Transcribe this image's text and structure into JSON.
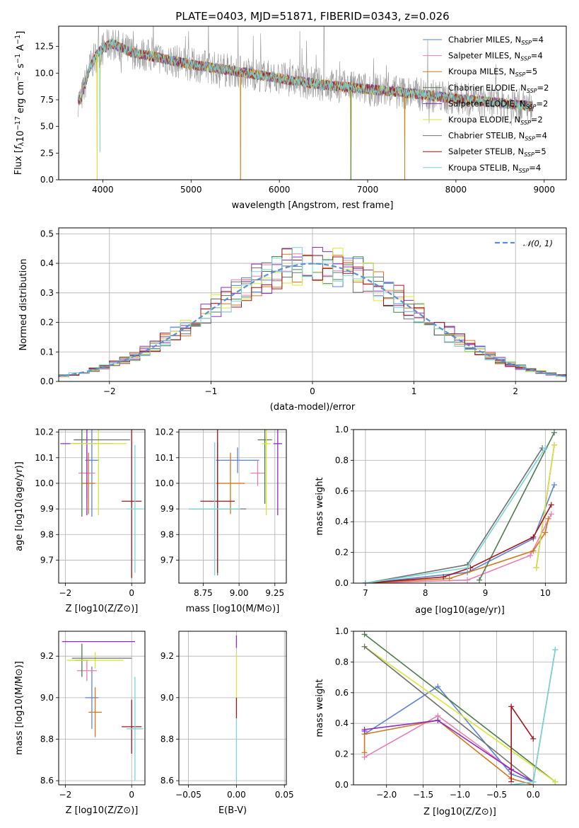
{
  "colors": {
    "Chabrier MILES": "#5b84d6",
    "Salpeter MILES": "#e57fb6",
    "Kroupa MILES": "#d2771c",
    "Chabrier ELODIE": "#4e7a4e",
    "Salpeter ELODIE": "#8e2bc2",
    "Kroupa ELODIE": "#d8e63a",
    "Chabrier STELIB": "#707070",
    "Salpeter STELIB": "#a4141c",
    "Kroupa STELIB": "#79d6d6",
    "gaussian": "#5b8fd6",
    "data": "#909090"
  },
  "chart_data": [
    {
      "id": "spectrum",
      "type": "line",
      "title": "PLATE=0403, MJD=51871, FIBERID=0343, z=0.026",
      "xlabel": "wavelength [Angstrom, rest frame]",
      "ylabel": "Flux [f_λ10^-17 erg cm^-2 s^-1 A^-1]",
      "xlim": [
        3500,
        9250
      ],
      "ylim": [
        0,
        14.4
      ],
      "xticks": [
        "4000",
        "5000",
        "6000",
        "7000",
        "8000",
        "9000"
      ],
      "yticks": [
        "0.0",
        "2.5",
        "5.0",
        "7.5",
        "10.0",
        "12.5"
      ],
      "legend": [
        {
          "name": "Chabrier MILES",
          "sup": "SSP",
          "n": "4"
        },
        {
          "name": "Salpeter MILES",
          "sup": "SSP",
          "n": "4"
        },
        {
          "name": "Kroupa MILES",
          "sup": "SSP",
          "n": "5"
        },
        {
          "name": "Chabrier ELODIE",
          "sup": "SSP",
          "n": "2"
        },
        {
          "name": "Salpeter ELODIE",
          "sup": "SSP",
          "n": "2"
        },
        {
          "name": "Kroupa ELODIE",
          "sup": "SSP",
          "n": "2"
        },
        {
          "name": "Chabrier STELIB",
          "sup": "SSP",
          "n": "4"
        },
        {
          "name": "Salpeter STELIB",
          "sup": "SSP",
          "n": "5"
        },
        {
          "name": "Kroupa STELIB",
          "sup": "SSP",
          "n": "4"
        }
      ],
      "legend_placement": "top-right",
      "continuum": {
        "x": [
          3750,
          3850,
          3950,
          4100,
          4300,
          4600,
          5000,
          5500,
          6000,
          6500,
          7000,
          7500,
          8000,
          8500,
          8850
        ],
        "y": [
          7.5,
          10.5,
          12.0,
          12.8,
          12.0,
          11.5,
          10.8,
          10.2,
          9.5,
          8.9,
          8.5,
          8.1,
          7.6,
          7.2,
          6.9
        ]
      },
      "dips": [
        {
          "x": 3935,
          "y": 0.0
        },
        {
          "x": 3968,
          "y": 2.6
        },
        {
          "x": 5560,
          "y": 0.0
        },
        {
          "x": 6810,
          "y": 0.0
        },
        {
          "x": 7420,
          "y": 0.0
        }
      ]
    },
    {
      "id": "residuals",
      "type": "histogram",
      "xlabel": "(data-model)/error",
      "ylabel": "Normed distribution",
      "xlim": [
        -2.5,
        2.5
      ],
      "ylim": [
        0,
        0.52
      ],
      "xticks": [
        "−2",
        "−1",
        "0",
        "1",
        "2"
      ],
      "yticks": [
        "0.0",
        "0.1",
        "0.2",
        "0.3",
        "0.4",
        "0.5"
      ],
      "legend": [
        "𝒩(0, 1)"
      ],
      "legend_placement": "top-right",
      "bin_width": 0.1,
      "grid": true
    },
    {
      "id": "age-vs-Z",
      "type": "scatter",
      "xlabel": "Z [log10(Z/Z⊙)]",
      "ylabel": "age [log10(age/yr)]",
      "xlim": [
        -2.2,
        0.4
      ],
      "ylim": [
        9.61,
        10.21
      ],
      "xticks": [
        "−2",
        "0"
      ],
      "yticks": [
        "9.7",
        "9.8",
        "9.9",
        "10.0",
        "10.1",
        "10.2"
      ],
      "points": [
        {
          "series": "Chabrier MILES",
          "x": -1.2,
          "y": 10.09,
          "xerr": 0.2,
          "yerr": 0.22
        },
        {
          "series": "Salpeter MILES",
          "x": -1.35,
          "y": 10.04,
          "xerr": 0.25,
          "yerr": 0.1
        },
        {
          "series": "Kroupa MILES",
          "x": -1.3,
          "y": 10.0,
          "xerr": 0.2,
          "yerr": 0.12
        },
        {
          "series": "Chabrier ELODIE",
          "x": -1.5,
          "y": 10.17,
          "xerr": 0.2,
          "yerr": 0.3
        },
        {
          "series": "Salpeter ELODIE",
          "x": -1.35,
          "y": 10.155,
          "xerr": 0.8,
          "yerr": 0.28
        },
        {
          "series": "Kroupa ELODIE",
          "x": -1.0,
          "y": 10.155,
          "xerr": 0.85,
          "yerr": 0.28
        },
        {
          "series": "Chabrier STELIB",
          "x": -0.9,
          "y": 10.17,
          "xerr": 0.85,
          "yerr": 0.0
        },
        {
          "series": "Salpeter STELIB",
          "x": 0.0,
          "y": 9.93,
          "xerr": 0.3,
          "yerr": 0.3
        },
        {
          "series": "Kroupa STELIB",
          "x": 0.1,
          "y": 9.9,
          "xerr": 0.25,
          "yerr": 0.25
        }
      ]
    },
    {
      "id": "age-vs-mass",
      "type": "scatter",
      "xlabel": "mass [log10(M/M⊙)]",
      "ylabel": "",
      "xlim": [
        8.58,
        9.33
      ],
      "ylim": [
        9.61,
        10.21
      ],
      "xticks": [
        "8.75",
        "9.00",
        "9.25"
      ],
      "yticks": [
        "9.7",
        "9.8",
        "9.9",
        "10.0",
        "10.1",
        "10.2"
      ],
      "points": [
        {
          "series": "Chabrier MILES",
          "x": 8.99,
          "y": 10.09,
          "xerr": 0.15,
          "yerr": 0.05
        },
        {
          "series": "Salpeter MILES",
          "x": 9.13,
          "y": 10.04,
          "xerr": 0.05,
          "yerr": 0.05
        },
        {
          "series": "Kroupa MILES",
          "x": 8.94,
          "y": 10.0,
          "xerr": 0.1,
          "yerr": 0.12
        },
        {
          "series": "Chabrier ELODIE",
          "x": 9.18,
          "y": 10.17,
          "xerr": 0.05,
          "yerr": 0.25
        },
        {
          "series": "Salpeter ELODIE",
          "x": 9.27,
          "y": 10.155,
          "xerr": 0.03,
          "yerr": 0.28
        },
        {
          "series": "Kroupa ELODIE",
          "x": 9.19,
          "y": 10.155,
          "xerr": 0.03,
          "yerr": 0.28
        },
        {
          "series": "Chabrier STELIB",
          "x": 8.85,
          "y": 9.9,
          "xerr": 0.2,
          "yerr": 0.26
        },
        {
          "series": "Salpeter STELIB",
          "x": 8.85,
          "y": 9.93,
          "xerr": 0.12,
          "yerr": 0.28
        },
        {
          "series": "Kroupa STELIB",
          "x": 8.83,
          "y": 9.9,
          "xerr": 0.18,
          "yerr": 0.26
        }
      ]
    },
    {
      "id": "weight-vs-age",
      "type": "line",
      "xlabel": "age [log10(age/yr)]",
      "ylabel": "mass weight",
      "xlim": [
        6.8,
        10.35
      ],
      "ylim": [
        0,
        1.0
      ],
      "xticks": [
        "7",
        "8",
        "9",
        "10"
      ],
      "yticks": [
        "0.0",
        "0.2",
        "0.4",
        "0.6",
        "0.8",
        "1.0"
      ],
      "series": [
        {
          "name": "Chabrier MILES",
          "x": [
            7.0,
            8.7,
            9.8,
            10.15
          ],
          "y": [
            0.0,
            0.07,
            0.29,
            0.64
          ]
        },
        {
          "name": "Salpeter MILES",
          "x": [
            7.0,
            8.7,
            9.75,
            10.1
          ],
          "y": [
            0.0,
            0.02,
            0.18,
            0.45
          ]
        },
        {
          "name": "Kroupa MILES",
          "x": [
            7.0,
            8.4,
            9.8,
            10.0,
            10.05
          ],
          "y": [
            0.0,
            0.03,
            0.21,
            0.33,
            0.42
          ]
        },
        {
          "name": "Chabrier ELODIE",
          "x": [
            8.9,
            10.15
          ],
          "y": [
            0.02,
            0.98
          ]
        },
        {
          "name": "Salpeter ELODIE",
          "x": [
            9.85,
            10.15
          ],
          "y": [
            0.1,
            0.9
          ]
        },
        {
          "name": "Kroupa ELODIE",
          "x": [
            9.85,
            10.15
          ],
          "y": [
            0.1,
            0.9
          ]
        },
        {
          "name": "Chabrier STELIB",
          "x": [
            7.0,
            8.7,
            9.95
          ],
          "y": [
            0.0,
            0.12,
            0.88
          ]
        },
        {
          "name": "Salpeter STELIB",
          "x": [
            7.0,
            8.3,
            8.75,
            9.8,
            10.1
          ],
          "y": [
            0.0,
            0.04,
            0.1,
            0.3,
            0.51
          ]
        },
        {
          "name": "Kroupa STELIB",
          "x": [
            7.0,
            8.7,
            10.0
          ],
          "y": [
            0.0,
            0.1,
            0.88
          ]
        }
      ]
    },
    {
      "id": "mass-vs-Z",
      "type": "scatter",
      "xlabel": "Z [log10(Z/Z⊙)]",
      "ylabel": "mass [log10(M/M⊙)]",
      "xlim": [
        -2.2,
        0.4
      ],
      "ylim": [
        8.58,
        9.32
      ],
      "xticks": [
        "−2",
        "0"
      ],
      "yticks": [
        "8.6",
        "8.8",
        "9.0",
        "9.2"
      ],
      "points": [
        {
          "series": "Chabrier MILES",
          "x": -1.2,
          "y": 9.0,
          "xerr": 0.2,
          "yerr": 0.15
        },
        {
          "series": "Salpeter MILES",
          "x": -1.35,
          "y": 9.13,
          "xerr": 0.3,
          "yerr": 0.05
        },
        {
          "series": "Kroupa MILES",
          "x": -1.1,
          "y": 8.93,
          "xerr": 0.2,
          "yerr": 0.12
        },
        {
          "series": "Chabrier ELODIE",
          "x": -1.5,
          "y": 9.18,
          "xerr": 0.2,
          "yerr": 0.08
        },
        {
          "series": "Salpeter ELODIE",
          "x": -1.0,
          "y": 9.27,
          "xerr": 1.1,
          "yerr": 0.0
        },
        {
          "series": "Kroupa ELODIE",
          "x": -1.1,
          "y": 9.18,
          "xerr": 0.85,
          "yerr": 0.04
        },
        {
          "series": "Chabrier STELIB",
          "x": -0.9,
          "y": 9.19,
          "xerr": 0.9,
          "yerr": 0.0
        },
        {
          "series": "Salpeter STELIB",
          "x": 0.0,
          "y": 8.86,
          "xerr": 0.3,
          "yerr": 0.13
        },
        {
          "series": "Kroupa STELIB",
          "x": 0.1,
          "y": 8.85,
          "xerr": 0.25,
          "yerr": 0.25
        }
      ]
    },
    {
      "id": "mass-vs-ebv",
      "type": "scatter",
      "xlabel": "E(B-V)",
      "ylabel": "",
      "xlim": [
        -0.06,
        0.052
      ],
      "ylim": [
        8.58,
        9.32
      ],
      "xticks": [
        "−0.05",
        "0.00",
        "0.05"
      ],
      "yticks": [
        "8.6",
        "8.8",
        "9.0",
        "9.2"
      ],
      "points": [
        {
          "series": "Salpeter ELODIE",
          "x": 0.0,
          "y": 9.27,
          "yerr": 0.03
        },
        {
          "series": "Kroupa ELODIE",
          "x": 0.0,
          "y": 9.1,
          "yerr": 0.12
        },
        {
          "series": "Salpeter STELIB",
          "x": 0.0,
          "y": 8.95,
          "yerr": 0.05
        },
        {
          "series": "Kroupa STELIB",
          "x": 0.0,
          "y": 8.75,
          "yerr": 0.15
        }
      ]
    },
    {
      "id": "weight-vs-Z",
      "type": "line",
      "xlabel": "Z [log10(Z/Z⊙)]",
      "ylabel": "mass weight",
      "xlim": [
        -2.45,
        0.45
      ],
      "ylim": [
        0,
        1.0
      ],
      "xticks": [
        "−2.0",
        "−1.5",
        "−1.0",
        "−0.5",
        "0.0"
      ],
      "yticks": [
        "0.0",
        "0.2",
        "0.4",
        "0.6",
        "0.8",
        "1.0"
      ],
      "series": [
        {
          "name": "Chabrier MILES",
          "x": [
            -2.3,
            -1.3,
            -0.3,
            0.0
          ],
          "y": [
            0.33,
            0.64,
            0.07,
            0.02
          ]
        },
        {
          "name": "Salpeter MILES",
          "x": [
            -2.3,
            -1.3,
            -0.3,
            0.0
          ],
          "y": [
            0.18,
            0.45,
            0.1,
            0.02
          ]
        },
        {
          "name": "Kroupa MILES",
          "x": [
            -2.3,
            -2.3,
            -1.3,
            -0.3,
            0.0
          ],
          "y": [
            0.21,
            0.33,
            0.42,
            0.04,
            0.0
          ]
        },
        {
          "name": "Chabrier ELODIE",
          "x": [
            -2.3,
            0.3
          ],
          "y": [
            0.98,
            0.02
          ]
        },
        {
          "name": "Salpeter ELODIE",
          "x": [
            -2.3,
            -2.3,
            -1.3,
            -0.3,
            0.0
          ],
          "y": [
            0.35,
            0.36,
            0.42,
            0.1,
            0.02
          ]
        },
        {
          "name": "Kroupa ELODIE",
          "x": [
            -2.3,
            0.3
          ],
          "y": [
            0.9,
            0.02
          ]
        },
        {
          "name": "Chabrier STELIB",
          "x": [
            -2.3,
            0.0,
            0.3
          ],
          "y": [
            0.9,
            0.02,
            0.88
          ]
        },
        {
          "name": "Salpeter STELIB",
          "x": [
            -0.3,
            -0.3,
            0.0
          ],
          "y": [
            0.02,
            0.51,
            0.3
          ]
        },
        {
          "name": "Kroupa STELIB",
          "x": [
            -0.3,
            0.0,
            0.3
          ],
          "y": [
            0.0,
            0.02,
            0.88
          ]
        }
      ]
    }
  ]
}
